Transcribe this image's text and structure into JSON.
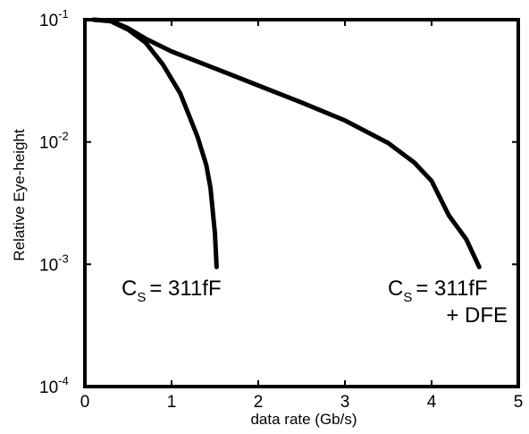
{
  "chart_data": {
    "type": "line",
    "xlabel": "data rate (Gb/s)",
    "ylabel": "Relative Eye-height",
    "xlim": [
      0,
      5
    ],
    "ylim": [
      0.0001,
      0.1
    ],
    "yscale": "log",
    "grid": false,
    "x_ticks": [
      {
        "value": 0,
        "label": "0"
      },
      {
        "value": 1,
        "label": "1"
      },
      {
        "value": 2,
        "label": "2"
      },
      {
        "value": 3,
        "label": "3"
      },
      {
        "value": 4,
        "label": "4"
      },
      {
        "value": 5,
        "label": "5"
      }
    ],
    "y_ticks": [
      {
        "value": 0.1,
        "base": "10",
        "exp": "-1"
      },
      {
        "value": 0.01,
        "base": "10",
        "exp": "-2"
      },
      {
        "value": 0.001,
        "base": "10",
        "exp": "-3"
      },
      {
        "value": 0.0001,
        "base": "10",
        "exp": "-4"
      }
    ],
    "series": [
      {
        "color": "#000000",
        "x": [
          0.1,
          0.3,
          0.5,
          0.7,
          0.9,
          1.1,
          1.3,
          1.4,
          1.45,
          1.5,
          1.52
        ],
        "y": [
          0.1,
          0.097,
          0.083,
          0.065,
          0.043,
          0.025,
          0.011,
          0.0065,
          0.0042,
          0.0018,
          0.00095
        ]
      },
      {
        "color": "#000000",
        "x": [
          0.1,
          0.3,
          0.5,
          0.7,
          1.0,
          1.5,
          2.0,
          2.5,
          3.0,
          3.5,
          3.8,
          4.0,
          4.2,
          4.4,
          4.55
        ],
        "y": [
          0.1,
          0.098,
          0.085,
          0.07,
          0.055,
          0.04,
          0.029,
          0.021,
          0.015,
          0.0098,
          0.0068,
          0.0048,
          0.0025,
          0.0016,
          0.00095
        ]
      }
    ],
    "annotations": [
      {
        "main": "C",
        "sub": "S",
        "rest": "= 311fF",
        "extra": ""
      },
      {
        "main": "C",
        "sub": "S",
        "rest": "= 311fF",
        "extra": "+ DFE"
      }
    ]
  }
}
